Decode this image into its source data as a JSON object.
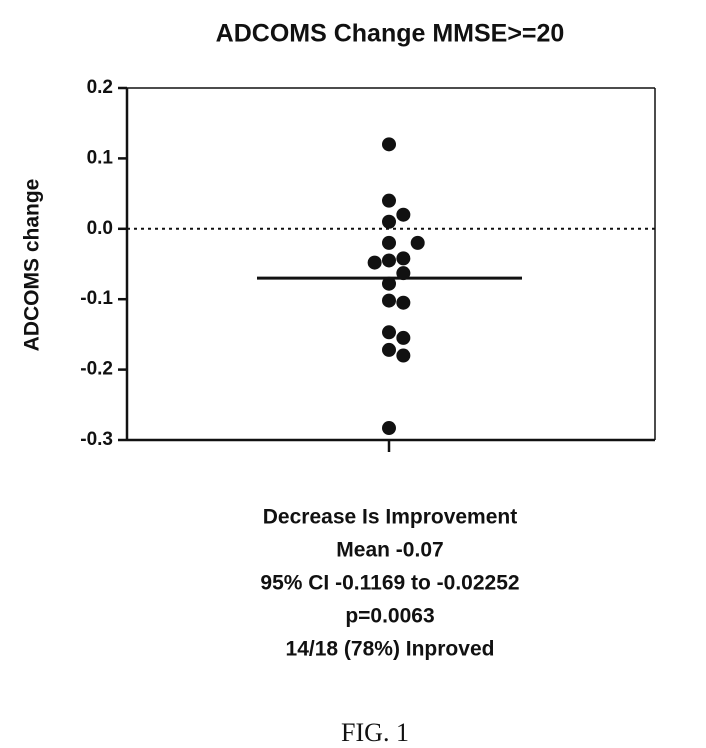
{
  "chart_data": {
    "type": "scatter",
    "title": "ADCOMS Change MMSE>=20",
    "y_label": "ADCOMS change",
    "categories": [
      null
    ],
    "values": [
      0.12,
      0.04,
      0.02,
      0.01,
      -0.02,
      -0.02,
      -0.045,
      -0.042,
      -0.048,
      -0.063,
      -0.078,
      -0.102,
      -0.105,
      -0.147,
      -0.155,
      -0.172,
      -0.18,
      -0.283
    ],
    "color": "#111111",
    "mean": -0.07,
    "reference_line": 0,
    "ylim": [
      -0.3,
      0.2
    ],
    "yticks": [
      -0.3,
      -0.2,
      -0.1,
      {
        "value": 0,
        "label": "0.0"
      },
      0.1,
      0.2
    ],
    "annotations": [
      "Decrease Is Improvement",
      "Mean -0.07",
      "95% CI -0.1169 to -0.02252",
      "p=0.0063",
      "14/18 (78%) Inproved"
    ]
  },
  "caption": "FIG. 1"
}
